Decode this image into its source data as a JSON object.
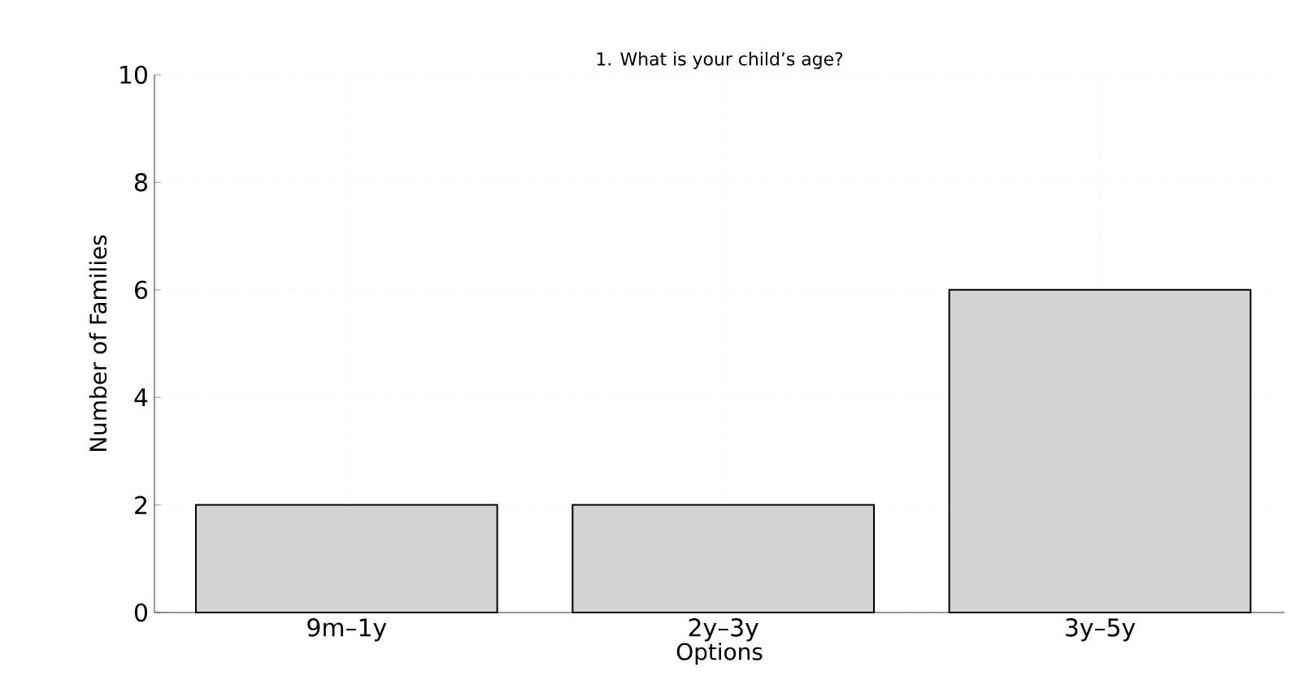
{
  "chart_data": {
    "type": "bar",
    "title": "1. What is your child’s age?",
    "xlabel": "Options",
    "ylabel": "Number of Families",
    "categories": [
      "9m–1y",
      "2y–3y",
      "3y–5y"
    ],
    "values": [
      2,
      2,
      6
    ],
    "color": "#d3d3d3",
    "ylim": [
      0,
      10
    ],
    "yticks": [
      0,
      2,
      4,
      6,
      8,
      10
    ],
    "grid": true
  }
}
